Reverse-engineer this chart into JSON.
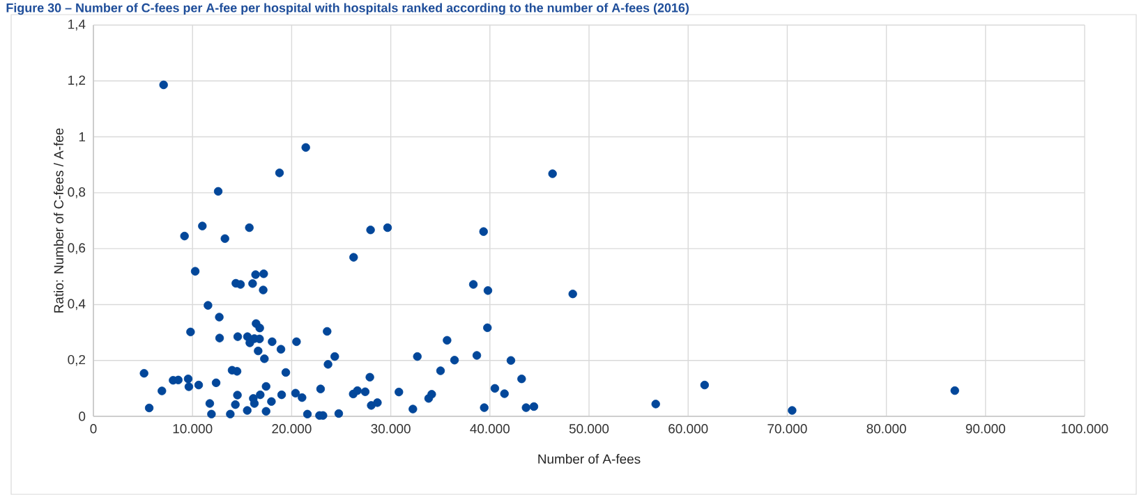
{
  "chart_data": {
    "type": "scatter",
    "title": "Figure 30 – Number of C-fees per A-fee per hospital with hospitals ranked according to the number of A-fees (2016)",
    "xlabel": "Number of A-fees",
    "ylabel": "Ratio: Number of C-fees / A-fee",
    "xlim": [
      0,
      100000
    ],
    "ylim": [
      0,
      1.4
    ],
    "xticks": [
      0,
      {
        "value": 10000,
        "label": "10.000"
      },
      {
        "value": 20000,
        "label": "20.000"
      },
      {
        "value": 30000,
        "label": "30.000"
      },
      {
        "value": 40000,
        "label": "40.000"
      },
      {
        "value": 50000,
        "label": "50.000"
      },
      {
        "value": 60000,
        "label": "60.000"
      },
      {
        "value": 70000,
        "label": "70.000"
      },
      {
        "value": 80000,
        "label": "80.000"
      },
      {
        "value": 90000,
        "label": "90.000"
      },
      {
        "value": 100000,
        "label": "100.000"
      }
    ],
    "yticks": [
      0,
      {
        "value": 0.2,
        "label": "0,2"
      },
      {
        "value": 0.4,
        "label": "0,4"
      },
      {
        "value": 0.6,
        "label": "0,6"
      },
      {
        "value": 0.8,
        "label": "0,8"
      },
      1,
      {
        "value": 1.2,
        "label": "1,2"
      },
      {
        "value": 1.4,
        "label": "1,4"
      }
    ],
    "grid": true,
    "marker": "circle",
    "series": [
      {
        "color": "#03479a",
        "x": [
          7080,
          21425,
          18775,
          12590,
          10990,
          9190,
          13270,
          15730,
          27960,
          29675,
          26250,
          10270,
          16360,
          17180,
          14370,
          14840,
          16060,
          17130,
          11560,
          12700,
          9800,
          16410,
          16780,
          23580,
          12730,
          14560,
          15540,
          15780,
          16240,
          16760,
          18030,
          20490,
          16620,
          18920,
          17250,
          24350,
          23670,
          32680,
          5110,
          6910,
          5630,
          8040,
          8560,
          9560,
          9630,
          10620,
          12380,
          11740,
          11910,
          13810,
          13990,
          14490,
          14530,
          14320,
          15520,
          16130,
          16240,
          16830,
          17420,
          17960,
          17420,
          19410,
          18990,
          20390,
          21050,
          21590,
          22920,
          22810,
          23160,
          24750,
          26210,
          26630,
          27420,
          27890,
          28030,
          28650,
          30820,
          32230,
          33820,
          34130,
          46320,
          39360,
          38330,
          39800,
          48360,
          39750,
          35680,
          38680,
          36430,
          42120,
          35020,
          43200,
          40500,
          41470,
          39430,
          43650,
          44440,
          56730,
          61660,
          70490,
          86900
        ],
        "values": [
          1.186,
          0.962,
          0.871,
          0.805,
          0.681,
          0.645,
          0.636,
          0.675,
          0.667,
          0.675,
          0.569,
          0.519,
          0.507,
          0.51,
          0.476,
          0.472,
          0.475,
          0.452,
          0.397,
          0.355,
          0.302,
          0.332,
          0.316,
          0.304,
          0.28,
          0.285,
          0.285,
          0.263,
          0.278,
          0.277,
          0.267,
          0.267,
          0.234,
          0.24,
          0.206,
          0.214,
          0.186,
          0.214,
          0.154,
          0.091,
          0.03,
          0.129,
          0.13,
          0.134,
          0.106,
          0.112,
          0.12,
          0.046,
          0.008,
          0.008,
          0.165,
          0.161,
          0.076,
          0.042,
          0.021,
          0.064,
          0.046,
          0.077,
          0.107,
          0.053,
          0.018,
          0.157,
          0.077,
          0.083,
          0.067,
          0.008,
          0.098,
          0.003,
          0.003,
          0.01,
          0.08,
          0.092,
          0.088,
          0.14,
          0.039,
          0.049,
          0.087,
          0.026,
          0.064,
          0.079,
          0.868,
          0.661,
          0.472,
          0.45,
          0.438,
          0.317,
          0.272,
          0.218,
          0.201,
          0.2,
          0.163,
          0.134,
          0.1,
          0.081,
          0.031,
          0.031,
          0.035,
          0.044,
          0.112,
          0.021,
          0.092
        ]
      }
    ]
  }
}
